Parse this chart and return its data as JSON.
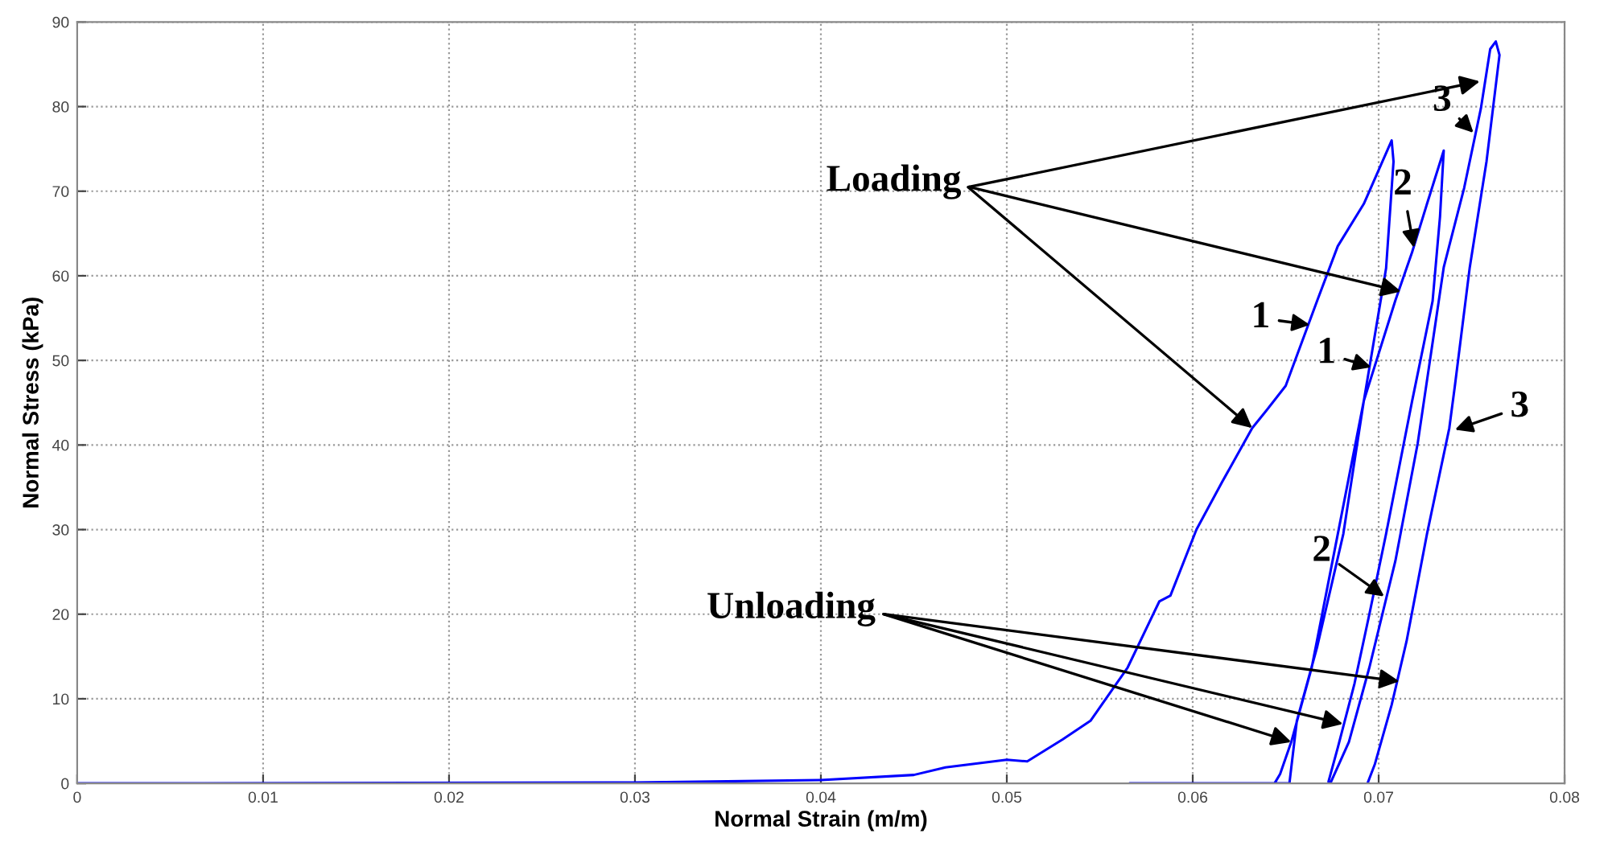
{
  "chart_data": {
    "type": "line",
    "xlabel": "Normal Strain (m/m)",
    "ylabel": "Normal Stress (kPa)",
    "xlim": [
      0,
      0.08
    ],
    "ylim": [
      0,
      90
    ],
    "xticks": [
      0,
      0.01,
      0.02,
      0.03,
      0.04,
      0.05,
      0.06,
      0.07,
      0.08
    ],
    "yticks": [
      0,
      10,
      20,
      30,
      40,
      50,
      60,
      70,
      80,
      90
    ],
    "grid": true,
    "marker": "none",
    "line_style": "solid",
    "series": [
      {
        "color": "#0000ff",
        "x": [
          0,
          0.03,
          0.04,
          0.045,
          0.0467,
          0.05,
          0.0511,
          0.053,
          0.0545,
          0.0565,
          0.0582,
          0.0588,
          0.0602,
          0.0616,
          0.0632,
          0.0639,
          0.065,
          0.0667,
          0.0678,
          0.0692,
          0.0707,
          0.0708,
          0.0704,
          0.0692,
          0.0672,
          0.0664,
          0.0653,
          0.0647,
          0.0644,
          0.0566,
          0.0652,
          0.0656,
          0.0667,
          0.0681,
          0.0692,
          0.0709,
          0.0718,
          0.0726,
          0.0735,
          0.0733,
          0.0729,
          0.0718,
          0.0704,
          0.0695,
          0.0687,
          0.0678,
          0.0673,
          0.0674,
          0.0684,
          0.0695,
          0.0709,
          0.0721,
          0.0735,
          0.0746,
          0.0755,
          0.076,
          0.0763,
          0.0765,
          0.0758,
          0.0749,
          0.0741,
          0.0738,
          0.0726,
          0.0715,
          0.0707,
          0.0698,
          0.0694
        ],
        "values": [
          0,
          0.1,
          0.4,
          1,
          1.9,
          2.8,
          2.6,
          5.2,
          7.4,
          13.7,
          21.5,
          22.2,
          30,
          35.7,
          42,
          43.9,
          47,
          57.1,
          63.5,
          68.5,
          76,
          73.5,
          60.9,
          45.2,
          22.7,
          13.7,
          4.9,
          1.1,
          0,
          0,
          0,
          7.4,
          16.2,
          29.5,
          45.2,
          57.1,
          62.8,
          68.5,
          74.8,
          67,
          57,
          45.2,
          29.5,
          20,
          11.8,
          4.2,
          0.2,
          0,
          4.9,
          13.7,
          26.3,
          40.2,
          61,
          70.4,
          79.8,
          86.8,
          87.7,
          86.1,
          73.5,
          61,
          47,
          42,
          29.5,
          16.8,
          9.3,
          2.3,
          0
        ]
      }
    ],
    "annotations": [
      {
        "text": "Loading",
        "x": 0.0632,
        "y": 42
      },
      {
        "text": "Unloading",
        "x": 0.0653,
        "y": 4.9
      },
      {
        "text": "1",
        "x": 0.0663,
        "y": 54.2
      },
      {
        "text": "1",
        "x": 0.0696,
        "y": 49.2
      },
      {
        "text": "2",
        "x": 0.0719,
        "y": 63.3
      },
      {
        "text": "3",
        "x": 0.0751,
        "y": 76.9
      },
      {
        "text": "3",
        "x": 0.0741,
        "y": 41.8
      },
      {
        "text": "2",
        "x": 0.0703,
        "y": 22.1
      }
    ]
  }
}
